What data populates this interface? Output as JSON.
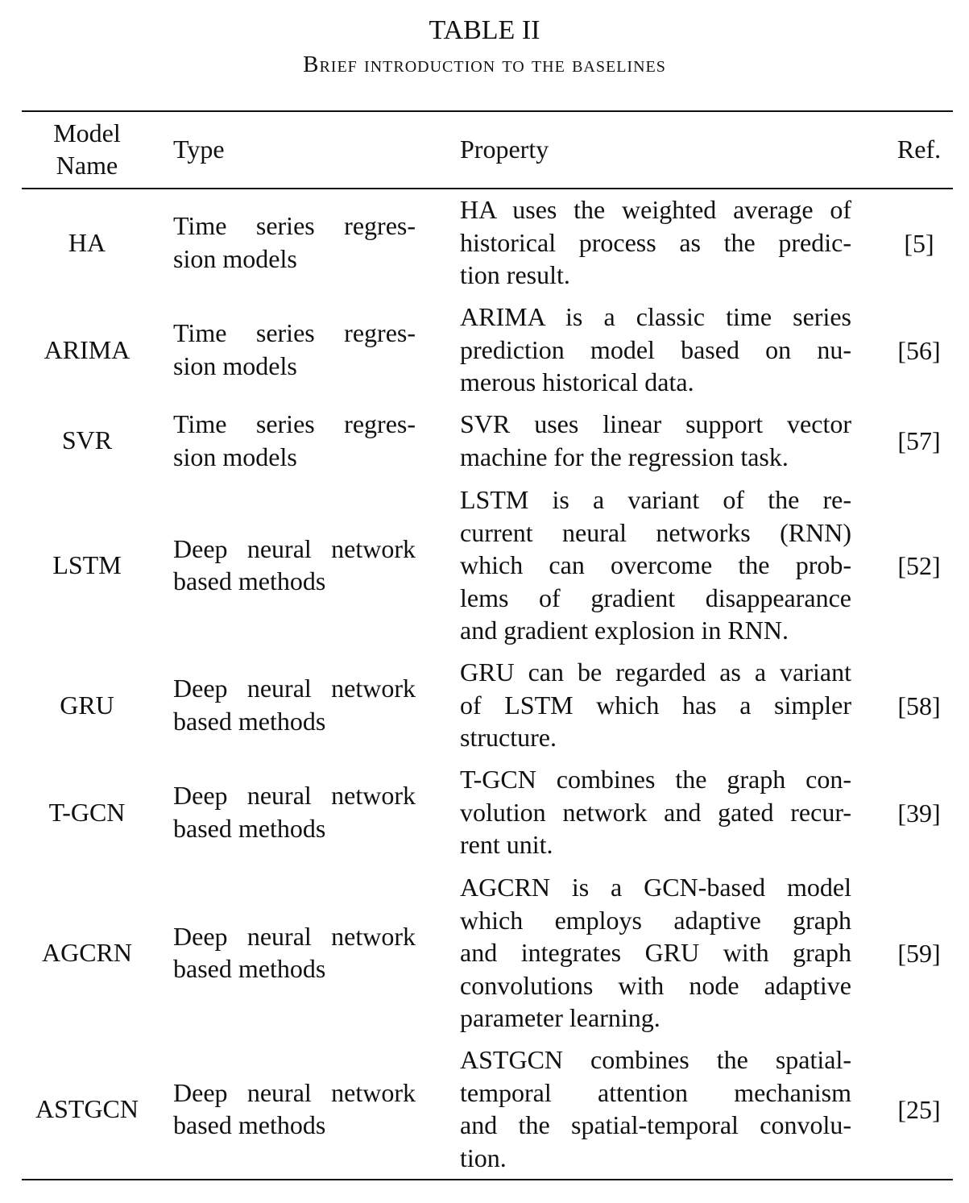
{
  "caption": {
    "title": "TABLE II",
    "subtitle": "Brief introduction to the baselines"
  },
  "table": {
    "headers": {
      "model_name_line1": "Model",
      "model_name_line2": "Name",
      "type": "Type",
      "property": "Property",
      "ref": "Ref."
    },
    "rows": [
      {
        "model": "HA",
        "type_lines": [
          "Time series regres-",
          "sion models"
        ],
        "property_lines": [
          "HA uses the weighted average of",
          "historical process as the predic-",
          "tion result."
        ],
        "ref": "[5]"
      },
      {
        "model": "ARIMA",
        "type_lines": [
          "Time series regres-",
          "sion models"
        ],
        "property_lines": [
          "ARIMA is a classic time series",
          "prediction model based on nu-",
          "merous historical data."
        ],
        "ref": "[56]"
      },
      {
        "model": "SVR",
        "type_lines": [
          "Time series regres-",
          "sion models"
        ],
        "property_lines": [
          "SVR uses linear support vector",
          "machine for the regression task."
        ],
        "ref": "[57]"
      },
      {
        "model": "LSTM",
        "type_lines": [
          "Deep neural network",
          "based methods"
        ],
        "property_lines": [
          "LSTM is a variant of the re-",
          "current neural networks (RNN)",
          "which can overcome the prob-",
          "lems of gradient disappearance",
          "and gradient explosion in RNN."
        ],
        "ref": "[52]"
      },
      {
        "model": "GRU",
        "type_lines": [
          "Deep neural network",
          "based methods"
        ],
        "property_lines": [
          "GRU can be regarded as a variant",
          "of LSTM which has a simpler",
          "structure."
        ],
        "ref": "[58]"
      },
      {
        "model": "T-GCN",
        "type_lines": [
          "Deep neural network",
          "based methods"
        ],
        "property_lines": [
          "T-GCN combines the graph con-",
          "volution network and gated recur-",
          "rent unit."
        ],
        "ref": "[39]"
      },
      {
        "model": "AGCRN",
        "type_lines": [
          "Deep neural network",
          "based methods"
        ],
        "property_lines": [
          "AGCRN is a GCN-based model",
          "which employs adaptive graph",
          "and integrates GRU with graph",
          "convolutions with node adaptive",
          "parameter learning."
        ],
        "ref": "[59]"
      },
      {
        "model": "ASTGCN",
        "type_lines": [
          "Deep neural network",
          "based methods"
        ],
        "property_lines": [
          "ASTGCN combines the spatial-",
          "temporal attention mechanism",
          "and the spatial-temporal convolu-",
          "tion."
        ],
        "ref": "[25]"
      }
    ]
  }
}
